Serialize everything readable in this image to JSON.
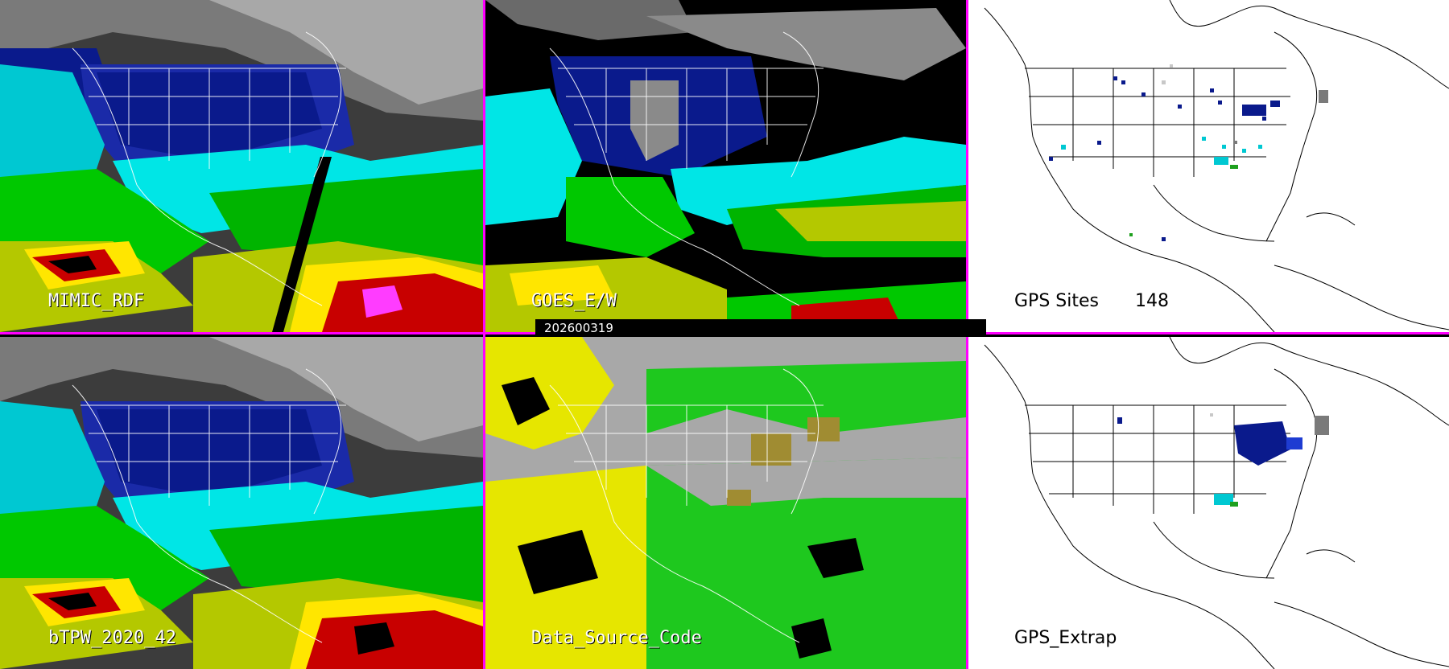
{
  "panels": {
    "top_left": {
      "title": "MIMIC_RDF"
    },
    "top_middle": {
      "title": "GOES_E/W"
    },
    "top_right": {
      "title": "GPS Sites",
      "count": "148"
    },
    "bottom_left": {
      "title": "bTPW_2020_42"
    },
    "bottom_middle": {
      "title": "Data_Source_Code"
    },
    "bottom_right": {
      "title": "GPS_Extrap"
    }
  },
  "timestamp": "202600319",
  "colors": {
    "separator": "#ff00ff",
    "tpw_scale": [
      "#ffffff",
      "#b0b0b0",
      "#6a6a6a",
      "#0a1a8c",
      "#1e3cd2",
      "#00e6e6",
      "#00c800",
      "#b4c800",
      "#ffe600",
      "#c80000",
      "#000000"
    ],
    "source_gray": "#a8a8a8",
    "source_yellow": "#e6e600",
    "source_green": "#1ec81e",
    "source_olive": "#a08c32"
  }
}
